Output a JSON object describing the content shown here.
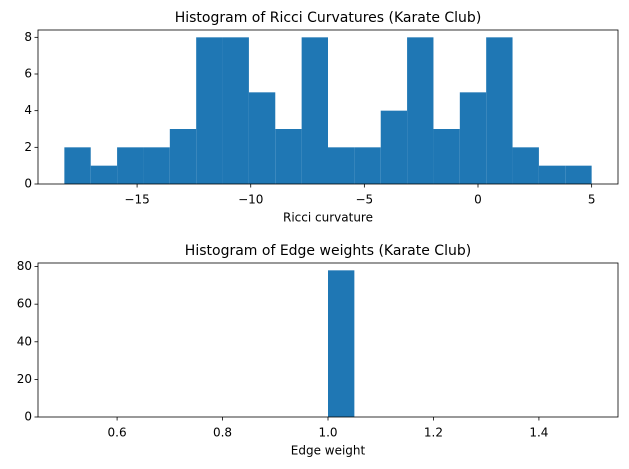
{
  "chart_data": [
    {
      "type": "histogram",
      "title": "Histogram of Ricci Curvatures (Karate Club)",
      "x_label": "Ricci curvature",
      "color": "#1f77b4",
      "bins": [
        -18.2,
        -17.04,
        -15.88,
        -14.72,
        -13.56,
        -12.4,
        -11.24,
        -10.08,
        -8.92,
        -7.76,
        -6.6,
        -5.44,
        -4.28,
        -3.12,
        -1.96,
        -0.8,
        0.36,
        1.52,
        2.68,
        3.84,
        5.0
      ],
      "values": [
        2,
        1,
        2,
        2,
        3,
        8,
        8,
        5,
        3,
        8,
        2,
        2,
        4,
        8,
        3,
        5,
        8,
        2,
        1,
        1
      ],
      "xlim": [
        -19.36,
        6.16
      ],
      "xticks": [
        {
          "value": -15,
          "label": "−15"
        },
        {
          "value": -10,
          "label": "−10"
        },
        {
          "value": -5,
          "label": "−5"
        },
        0,
        5
      ],
      "ylim": [
        0,
        8.4
      ],
      "yticks": [
        0,
        2,
        4,
        6,
        8
      ]
    },
    {
      "type": "histogram",
      "title": "Histogram of Edge weights (Karate Club)",
      "x_label": "Edge weight",
      "color": "#1f77b4",
      "bins": [
        0.5,
        0.55,
        0.6,
        0.65,
        0.7,
        0.75,
        0.8,
        0.85,
        0.9,
        0.95,
        1.0,
        1.05,
        1.1,
        1.15,
        1.2,
        1.25,
        1.3,
        1.35,
        1.4,
        1.45,
        1.5
      ],
      "values": [
        0,
        0,
        0,
        0,
        0,
        0,
        0,
        0,
        0,
        0,
        78,
        0,
        0,
        0,
        0,
        0,
        0,
        0,
        0,
        0
      ],
      "xlim": [
        0.45,
        1.55
      ],
      "xticks": [
        0.6,
        0.8,
        {
          "value": 1.0,
          "label": "1.0"
        },
        1.2,
        1.4
      ],
      "ylim": [
        0,
        81.9
      ],
      "yticks": [
        0,
        20,
        40,
        60,
        80
      ]
    }
  ]
}
